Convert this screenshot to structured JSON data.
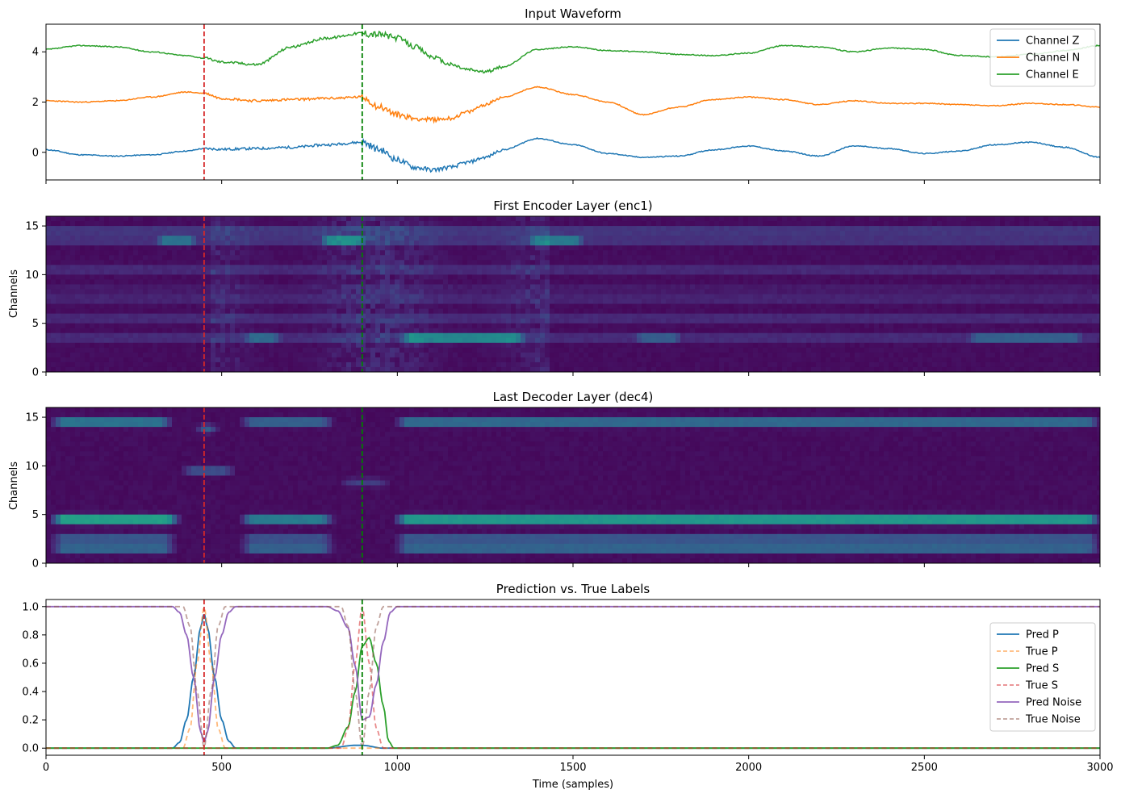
{
  "figure": {
    "xlabel": "Time (samples)",
    "xlim": [
      0,
      3000
    ],
    "x_ticks": [
      0,
      500,
      1000,
      1500,
      2000,
      2500,
      3000
    ],
    "p_marker": 450,
    "s_marker": 900,
    "p_marker_color": "#d62728",
    "s_marker_color": "#008000"
  },
  "chart_data": [
    {
      "type": "line",
      "title": "Input Waveform",
      "ylabel": "",
      "ylim": [
        -1.1,
        5.1
      ],
      "y_ticks": [
        0,
        2,
        4
      ],
      "legend_position": "top-right",
      "series": [
        {
          "name": "Channel Z",
          "color": "#1f77b4",
          "offset": 0,
          "seed": 11,
          "x": [
            0,
            100,
            200,
            300,
            400,
            450,
            500,
            600,
            700,
            800,
            900,
            950,
            1000,
            1050,
            1100,
            1150,
            1200,
            1250,
            1300,
            1400,
            1500,
            1600,
            1700,
            1800,
            1900,
            2000,
            2100,
            2200,
            2300,
            2400,
            2500,
            2600,
            2700,
            2800,
            2900,
            3000
          ],
          "y": [
            0.1,
            -0.1,
            -0.15,
            -0.1,
            0.05,
            0.15,
            0.12,
            0.15,
            0.2,
            0.3,
            0.4,
            0.1,
            -0.3,
            -0.6,
            -0.7,
            -0.6,
            -0.4,
            -0.2,
            0.1,
            0.55,
            0.3,
            -0.05,
            -0.2,
            -0.15,
            0.1,
            0.25,
            0.05,
            -0.15,
            0.25,
            0.15,
            -0.05,
            0.05,
            0.3,
            0.4,
            0.2,
            -0.2
          ]
        },
        {
          "name": "Channel N",
          "color": "#ff7f0e",
          "offset": 2,
          "seed": 23,
          "x": [
            0,
            100,
            200,
            300,
            400,
            450,
            500,
            600,
            700,
            800,
            900,
            950,
            1000,
            1050,
            1100,
            1150,
            1200,
            1250,
            1300,
            1400,
            1500,
            1600,
            1700,
            1800,
            1900,
            2000,
            2100,
            2200,
            2300,
            2400,
            2500,
            2600,
            2700,
            2800,
            2900,
            3000
          ],
          "y": [
            2.05,
            2.0,
            2.05,
            2.2,
            2.4,
            2.35,
            2.15,
            2.05,
            2.1,
            2.15,
            2.2,
            1.8,
            1.5,
            1.35,
            1.3,
            1.35,
            1.6,
            1.9,
            2.2,
            2.6,
            2.3,
            2.0,
            1.5,
            1.8,
            2.1,
            2.2,
            2.1,
            1.9,
            2.05,
            1.95,
            1.95,
            1.9,
            1.85,
            1.95,
            1.9,
            1.8
          ]
        },
        {
          "name": "Channel E",
          "color": "#2ca02c",
          "offset": 4,
          "seed": 37,
          "x": [
            0,
            100,
            200,
            300,
            400,
            450,
            500,
            600,
            700,
            800,
            900,
            950,
            1000,
            1050,
            1100,
            1150,
            1200,
            1250,
            1300,
            1400,
            1500,
            1600,
            1700,
            1800,
            1900,
            2000,
            2100,
            2200,
            2300,
            2400,
            2500,
            2600,
            2700,
            2800,
            2900,
            3000
          ],
          "y": [
            4.1,
            4.25,
            4.2,
            4.0,
            3.85,
            3.75,
            3.6,
            3.5,
            4.2,
            4.55,
            4.75,
            4.7,
            4.55,
            4.2,
            3.8,
            3.5,
            3.3,
            3.2,
            3.4,
            4.1,
            4.2,
            4.05,
            4.0,
            3.9,
            3.85,
            3.95,
            4.25,
            4.2,
            4.0,
            4.15,
            4.1,
            3.85,
            3.8,
            3.9,
            4.05,
            4.25
          ]
        }
      ]
    },
    {
      "type": "heatmap",
      "title": "First Encoder Layer (enc1)",
      "ylabel": "Channels",
      "ylim": [
        0,
        16
      ],
      "y_ticks": [
        0,
        5,
        10,
        15
      ],
      "channels": 16,
      "colormap": "viridis",
      "bands": [
        {
          "channel": 3.5,
          "segments": [
            [
              540,
              680,
              0.45
            ],
            [
              990,
              1370,
              0.6
            ],
            [
              1650,
              1820,
              0.38
            ],
            [
              2600,
              2960,
              0.4
            ]
          ],
          "base": 0.15
        },
        {
          "channel": 5.5,
          "segments": [],
          "base": 0.14
        },
        {
          "channel": 7.5,
          "segments": [],
          "base": 0.12
        },
        {
          "channel": 8.5,
          "segments": [],
          "base": 0.08
        },
        {
          "channel": 10.5,
          "segments": [],
          "base": 0.14
        },
        {
          "channel": 11.5,
          "segments": [],
          "base": 0.03
        },
        {
          "channel": 13.5,
          "segments": [
            [
              290,
              440,
              0.5
            ],
            [
              760,
              920,
              0.6
            ],
            [
              1350,
              1540,
              0.55
            ]
          ],
          "base": 0.18
        },
        {
          "channel": 14.5,
          "segments": [],
          "base": 0.2
        }
      ],
      "active_window": [
        455,
        1420
      ]
    },
    {
      "type": "heatmap",
      "title": "Last Decoder Layer (dec4)",
      "ylabel": "Channels",
      "ylim": [
        0,
        16
      ],
      "y_ticks": [
        0,
        5,
        10,
        15
      ],
      "channels": 16,
      "colormap": "viridis",
      "bands": [
        {
          "channel": 1.5,
          "segments": [
            [
              0,
              370,
              0.42
            ],
            [
              540,
              820,
              0.4
            ],
            [
              980,
              3000,
              0.42
            ]
          ],
          "base": 0.0
        },
        {
          "channel": 2.5,
          "segments": [
            [
              0,
              370,
              0.35
            ],
            [
              540,
              820,
              0.32
            ],
            [
              980,
              3000,
              0.35
            ]
          ],
          "base": 0.0
        },
        {
          "channel": 4.5,
          "segments": [
            [
              0,
              380,
              0.75
            ],
            [
              540,
              820,
              0.55
            ],
            [
              980,
              3000,
              0.7
            ]
          ],
          "base": 0.0
        },
        {
          "channel": 9.5,
          "segments": [
            [
              370,
              540,
              0.3
            ]
          ],
          "base": 0.0
        },
        {
          "channel": 8.3,
          "segments": [
            [
              820,
              980,
              0.18
            ]
          ],
          "base": 0.0
        },
        {
          "channel": 13.8,
          "segments": [
            [
              410,
              490,
              0.35
            ]
          ],
          "base": 0.0
        },
        {
          "channel": 14.5,
          "segments": [
            [
              0,
              360,
              0.5
            ],
            [
              540,
              820,
              0.4
            ],
            [
              980,
              3000,
              0.45
            ]
          ],
          "base": 0.0
        }
      ]
    },
    {
      "type": "line",
      "title": "Prediction vs. True Labels",
      "ylabel": "",
      "ylim": [
        -0.05,
        1.05
      ],
      "y_ticks": [
        0.0,
        0.2,
        0.4,
        0.6,
        0.8,
        1.0
      ],
      "legend_position": "center-right",
      "series": [
        {
          "name": "Pred P",
          "color": "#1f77b4",
          "dash": false,
          "x": [
            0,
            360,
            380,
            400,
            420,
            440,
            450,
            460,
            480,
            500,
            520,
            540,
            800,
            880,
            900,
            960,
            3000
          ],
          "y": [
            0,
            0,
            0.04,
            0.2,
            0.5,
            0.85,
            0.95,
            0.85,
            0.5,
            0.2,
            0.05,
            0,
            0,
            0.02,
            0.02,
            0,
            0
          ]
        },
        {
          "name": "True P",
          "color": "#ff7f0e",
          "dash": true,
          "opacity": 0.55,
          "x": [
            0,
            390,
            410,
            430,
            450,
            470,
            490,
            510,
            3000
          ],
          "y": [
            0,
            0,
            0.14,
            0.6,
            1.0,
            0.6,
            0.14,
            0,
            0
          ]
        },
        {
          "name": "Pred S",
          "color": "#2ca02c",
          "dash": false,
          "x": [
            0,
            800,
            830,
            860,
            880,
            900,
            920,
            940,
            960,
            975,
            990,
            3000
          ],
          "y": [
            0,
            0,
            0.02,
            0.15,
            0.4,
            0.72,
            0.78,
            0.6,
            0.3,
            0.05,
            0,
            0
          ]
        },
        {
          "name": "True S",
          "color": "#d62728",
          "dash": true,
          "opacity": 0.55,
          "x": [
            0,
            840,
            860,
            880,
            900,
            920,
            940,
            960,
            3000
          ],
          "y": [
            0,
            0,
            0.14,
            0.6,
            1.0,
            0.6,
            0.14,
            0,
            0
          ]
        },
        {
          "name": "Pred Noise",
          "color": "#9467bd",
          "dash": false,
          "x": [
            0,
            360,
            380,
            400,
            420,
            440,
            450,
            460,
            480,
            500,
            520,
            540,
            800,
            830,
            860,
            880,
            900,
            920,
            940,
            960,
            980,
            1000,
            3000
          ],
          "y": [
            1,
            1,
            0.96,
            0.8,
            0.5,
            0.12,
            0.04,
            0.12,
            0.5,
            0.8,
            0.96,
            1,
            1,
            0.97,
            0.85,
            0.58,
            0.2,
            0.22,
            0.45,
            0.75,
            0.96,
            1,
            1
          ]
        },
        {
          "name": "True Noise",
          "color": "#8c564b",
          "dash": true,
          "opacity": 0.55,
          "x": [
            0,
            390,
            410,
            430,
            450,
            470,
            490,
            510,
            840,
            860,
            880,
            900,
            920,
            940,
            960,
            3000
          ],
          "y": [
            1,
            1,
            0.86,
            0.4,
            0,
            0.4,
            0.86,
            1,
            1,
            0.86,
            0.4,
            0,
            0.4,
            0.86,
            1,
            1
          ]
        }
      ]
    }
  ]
}
